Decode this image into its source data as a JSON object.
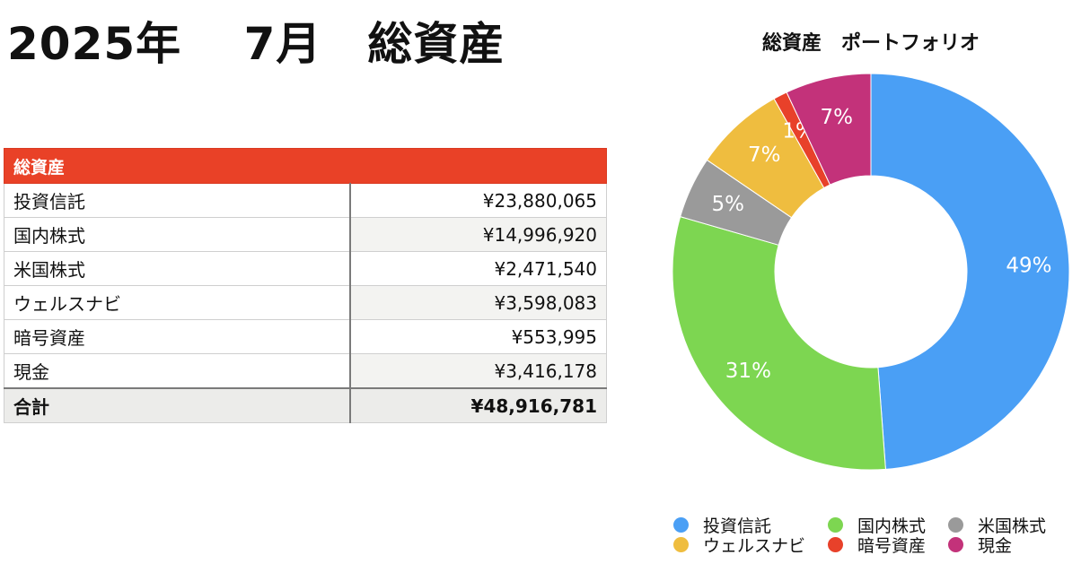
{
  "page": {
    "title": "2025年　 7月　総資産"
  },
  "table": {
    "header": "総資産",
    "rows": [
      {
        "name": "投資信託",
        "value": "¥23,880,065"
      },
      {
        "name": "国内株式",
        "value": "¥14,996,920"
      },
      {
        "name": "米国株式",
        "value": "¥2,471,540"
      },
      {
        "name": "ウェルスナビ",
        "value": "¥3,598,083"
      },
      {
        "name": "暗号資産",
        "value": "¥553,995"
      },
      {
        "name": "現金",
        "value": "¥3,416,178"
      }
    ],
    "total": {
      "name": "合計",
      "value": "¥48,916,781"
    }
  },
  "chart_data": {
    "type": "pie",
    "donut": true,
    "title": "総資産　ポートフォリオ",
    "categories": [
      "投資信託",
      "国内株式",
      "米国株式",
      "ウェルスナビ",
      "暗号資産",
      "現金"
    ],
    "values": [
      23880065,
      14996920,
      2471540,
      3598083,
      553995,
      3416178
    ],
    "labels": [
      "49%",
      "31%",
      "5%",
      "7%",
      "1%",
      "7%"
    ],
    "colors": [
      "#4a9ff5",
      "#7dd651",
      "#9a9a9a",
      "#efbd3f",
      "#e8412a",
      "#c3327a"
    ],
    "legend_position": "bottom"
  }
}
